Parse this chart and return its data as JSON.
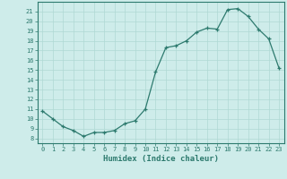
{
  "x": [
    0,
    1,
    2,
    3,
    4,
    5,
    6,
    7,
    8,
    9,
    10,
    11,
    12,
    13,
    14,
    15,
    16,
    17,
    18,
    19,
    20,
    21,
    22,
    23
  ],
  "y": [
    10.8,
    10.0,
    9.2,
    8.8,
    8.2,
    8.6,
    8.6,
    8.8,
    9.5,
    9.8,
    11.0,
    14.8,
    17.3,
    17.5,
    18.0,
    18.9,
    19.3,
    19.2,
    21.2,
    21.3,
    20.5,
    19.2,
    18.2,
    15.2
  ],
  "xlabel": "Humidex (Indice chaleur)",
  "xlim": [
    -0.5,
    23.5
  ],
  "ylim": [
    7.5,
    22.0
  ],
  "yticks": [
    8,
    9,
    10,
    11,
    12,
    13,
    14,
    15,
    16,
    17,
    18,
    19,
    20,
    21
  ],
  "xticks": [
    0,
    1,
    2,
    3,
    4,
    5,
    6,
    7,
    8,
    9,
    10,
    11,
    12,
    13,
    14,
    15,
    16,
    17,
    18,
    19,
    20,
    21,
    22,
    23
  ],
  "line_color": "#2d7a6e",
  "bg_color": "#ceecea",
  "grid_color": "#afd8d4"
}
